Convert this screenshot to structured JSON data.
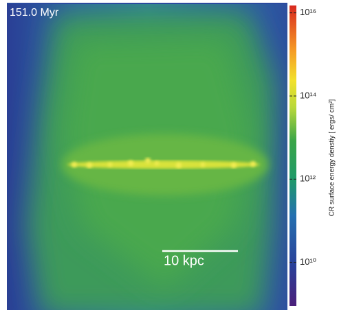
{
  "title": "151.0 Myr",
  "scale_bar": "10 kpc",
  "chart_data": {
    "type": "colorbar",
    "label": "CR surface energy denstiy [ ergs/ cm²]",
    "log": true,
    "ylim": [
      900000000,
      15000000000000000
    ],
    "yticks": [
      {
        "value": 10000000000,
        "label": "10¹⁰"
      },
      {
        "value": 1000000000000,
        "label": "10¹²"
      },
      {
        "value": 100000000000000,
        "label": "10¹⁴"
      },
      {
        "value": 10000000000000000,
        "label": "10¹⁶"
      }
    ]
  }
}
